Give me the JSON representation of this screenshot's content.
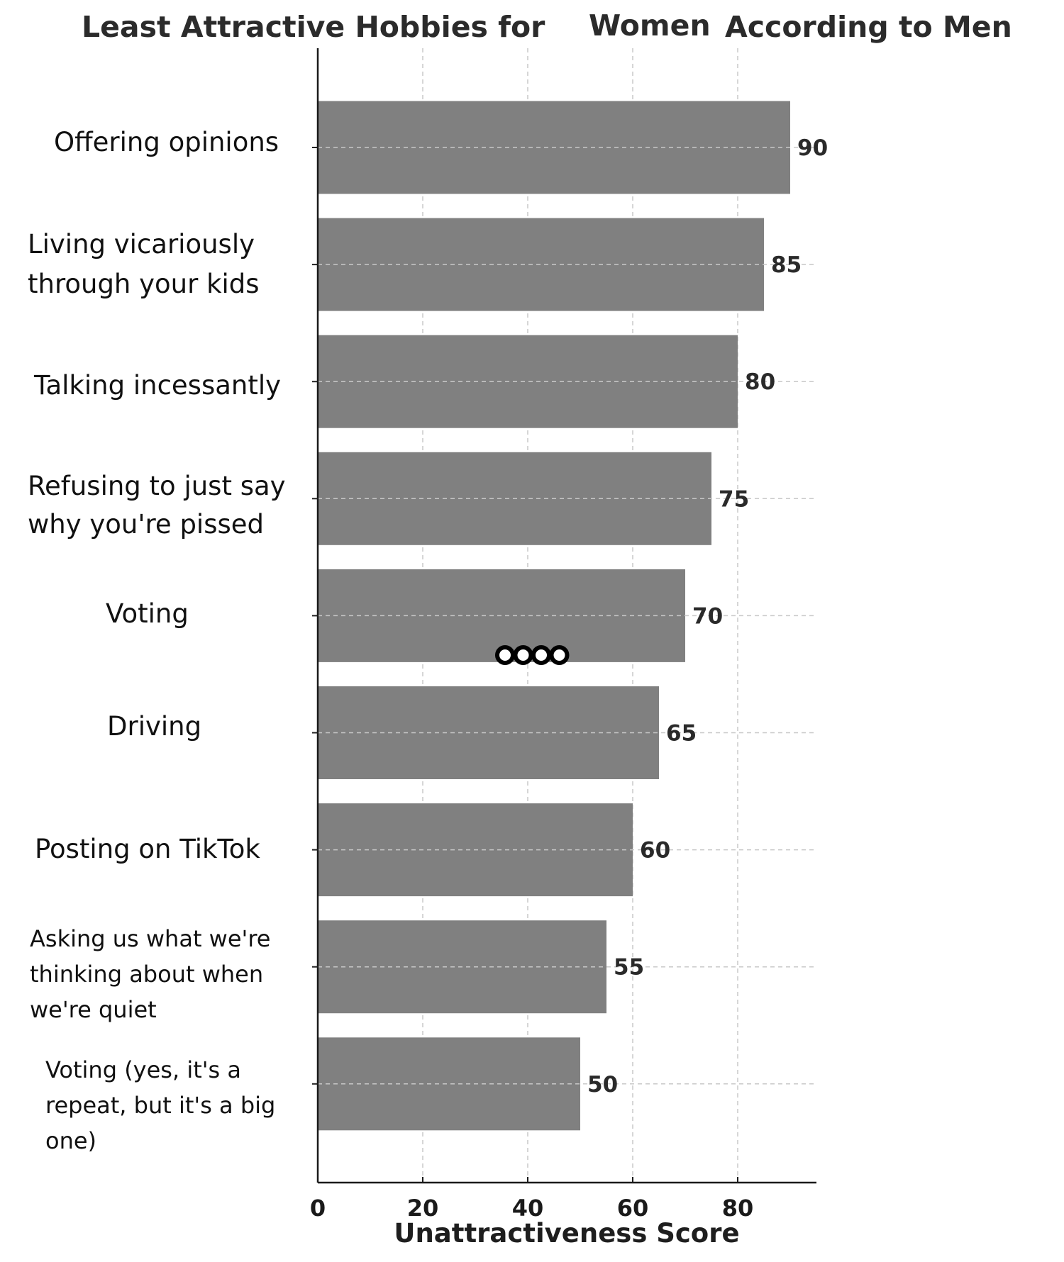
{
  "chart_data": {
    "type": "bar",
    "orientation": "horizontal",
    "title_parts": [
      "Least Attractive Hobbies for",
      "Women",
      "According to Men"
    ],
    "xlabel": "Unattractiveness Score",
    "ylabel": "",
    "xlim": [
      0,
      95
    ],
    "xticks": [
      0,
      20,
      40,
      60,
      80
    ],
    "grid": true,
    "categories": [
      [
        "Offering opinions"
      ],
      [
        "Living vicariously",
        "through your kids"
      ],
      [
        "Talking incessantly"
      ],
      [
        "Refusing to just say",
        "why you're pissed"
      ],
      [
        "Voting"
      ],
      [
        "Driving"
      ],
      [
        "Posting on TikTok"
      ],
      [
        "Asking us what we're",
        "thinking about when",
        "we're quiet"
      ],
      [
        "Voting (yes, it's a",
        "repeat, but it's a big",
        "one)"
      ]
    ],
    "values": [
      90,
      85,
      80,
      75,
      70,
      65,
      60,
      55,
      50
    ],
    "value_labels": [
      "90",
      "85",
      "80",
      "75",
      "70",
      "65",
      "60",
      "55",
      "50"
    ],
    "bar_color": "#808080",
    "annotation": {
      "type": "rings",
      "count": 4,
      "near_category_index": 4
    }
  }
}
